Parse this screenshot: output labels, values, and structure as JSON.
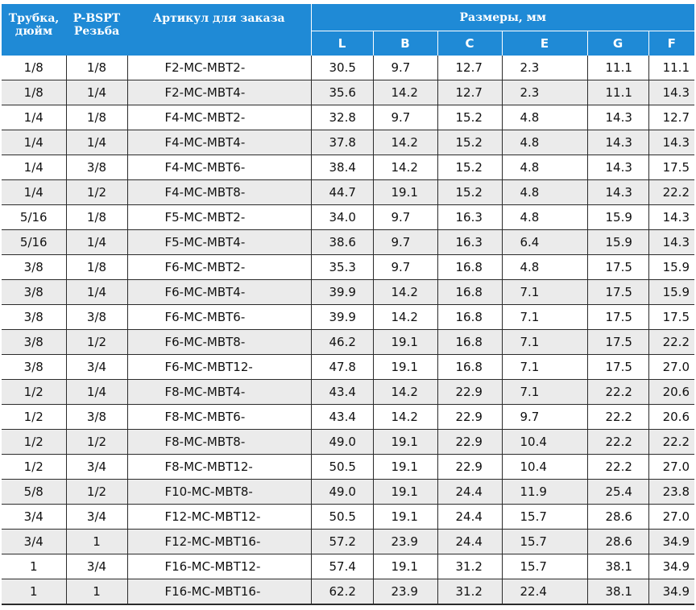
{
  "header": {
    "tube": "Трубка, дюйм",
    "thread": "P-BSPT Резьба",
    "article": "Артикул для заказа",
    "dimensions": "Размеры, мм",
    "dims": [
      "L",
      "B",
      "C",
      "E",
      "G",
      "F"
    ]
  },
  "colors": {
    "header_bg": "#1f8ad6",
    "header_text": "#ffffff",
    "stripe": "#ebebeb"
  },
  "rows": [
    [
      "1/8",
      "1/8",
      "F2-MC-MBT2-",
      "30.5",
      "9.7",
      "12.7",
      "2.3",
      "11.1",
      "11.1"
    ],
    [
      "1/8",
      "1/4",
      "F2-MC-MBT4-",
      "35.6",
      "14.2",
      "12.7",
      "2.3",
      "11.1",
      "14.3"
    ],
    [
      "1/4",
      "1/8",
      "F4-MC-MBT2-",
      "32.8",
      "9.7",
      "15.2",
      "4.8",
      "14.3",
      "12.7"
    ],
    [
      "1/4",
      "1/4",
      "F4-MC-MBT4-",
      "37.8",
      "14.2",
      "15.2",
      "4.8",
      "14.3",
      "14.3"
    ],
    [
      "1/4",
      "3/8",
      "F4-MC-MBT6-",
      "38.4",
      "14.2",
      "15.2",
      "4.8",
      "14.3",
      "17.5"
    ],
    [
      "1/4",
      "1/2",
      "F4-MC-MBT8-",
      "44.7",
      "19.1",
      "15.2",
      "4.8",
      "14.3",
      "22.2"
    ],
    [
      "5/16",
      "1/8",
      "F5-MC-MBT2-",
      "34.0",
      "9.7",
      "16.3",
      "4.8",
      "15.9",
      "14.3"
    ],
    [
      "5/16",
      "1/4",
      "F5-MC-MBT4-",
      "38.6",
      "9.7",
      "16.3",
      "6.4",
      "15.9",
      "14.3"
    ],
    [
      "3/8",
      "1/8",
      "F6-MC-MBT2-",
      "35.3",
      "9.7",
      "16.8",
      "4.8",
      "17.5",
      "15.9"
    ],
    [
      "3/8",
      "1/4",
      "F6-MC-MBT4-",
      "39.9",
      "14.2",
      "16.8",
      "7.1",
      "17.5",
      "15.9"
    ],
    [
      "3/8",
      "3/8",
      "F6-MC-MBT6-",
      "39.9",
      "14.2",
      "16.8",
      "7.1",
      "17.5",
      "17.5"
    ],
    [
      "3/8",
      "1/2",
      "F6-MC-MBT8-",
      "46.2",
      "19.1",
      "16.8",
      "7.1",
      "17.5",
      "22.2"
    ],
    [
      "3/8",
      "3/4",
      "F6-MC-MBT12-",
      "47.8",
      "19.1",
      "16.8",
      "7.1",
      "17.5",
      "27.0"
    ],
    [
      "1/2",
      "1/4",
      "F8-MC-MBT4-",
      "43.4",
      "14.2",
      "22.9",
      "7.1",
      "22.2",
      "20.6"
    ],
    [
      "1/2",
      "3/8",
      "F8-MC-MBT6-",
      "43.4",
      "14.2",
      "22.9",
      "9.7",
      "22.2",
      "20.6"
    ],
    [
      "1/2",
      "1/2",
      "F8-MC-MBT8-",
      "49.0",
      "19.1",
      "22.9",
      "10.4",
      "22.2",
      "22.2"
    ],
    [
      "1/2",
      "3/4",
      "F8-MC-MBT12-",
      "50.5",
      "19.1",
      "22.9",
      "10.4",
      "22.2",
      "27.0"
    ],
    [
      "5/8",
      "1/2",
      "F10-MC-MBT8-",
      "49.0",
      "19.1",
      "24.4",
      "11.9",
      "25.4",
      "23.8"
    ],
    [
      "3/4",
      "3/4",
      "F12-MC-MBT12-",
      "50.5",
      "19.1",
      "24.4",
      "15.7",
      "28.6",
      "27.0"
    ],
    [
      "3/4",
      "1",
      "F12-MC-MBT16-",
      "57.2",
      "23.9",
      "24.4",
      "15.7",
      "28.6",
      "34.9"
    ],
    [
      "1",
      "3/4",
      "F16-MC-MBT12-",
      "57.4",
      "19.1",
      "31.2",
      "15.7",
      "38.1",
      "34.9"
    ],
    [
      "1",
      "1",
      "F16-MC-MBT16-",
      "62.2",
      "23.9",
      "31.2",
      "22.4",
      "38.1",
      "34.9"
    ]
  ]
}
